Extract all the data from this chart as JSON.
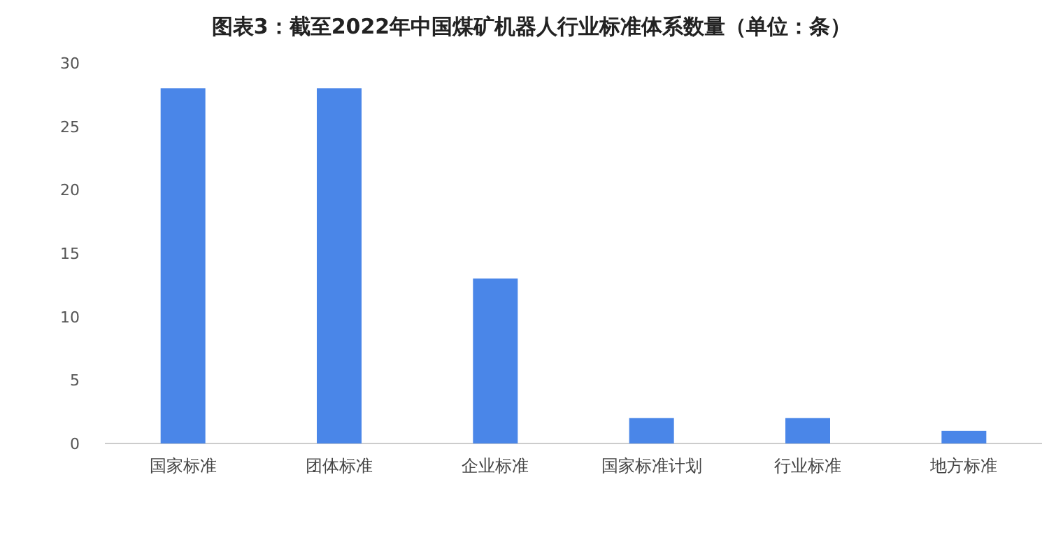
{
  "chart_data": {
    "type": "bar",
    "title": "图表3：截至2022年中国煤矿机器人行业标准体系数量（单位：条）",
    "categories": [
      "国家标准",
      "团体标准",
      "企业标准",
      "国家标准计划",
      "行业标准",
      "地方标准"
    ],
    "values": [
      28,
      28,
      13,
      2,
      2,
      1
    ],
    "color": "#4a86e8",
    "ylim": [
      0,
      30
    ],
    "yticks": [
      0,
      5,
      10,
      15,
      20,
      25,
      30
    ]
  }
}
